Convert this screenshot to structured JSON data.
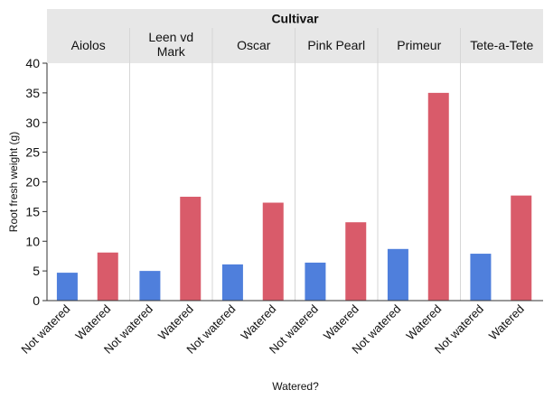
{
  "chart_data": {
    "type": "bar",
    "title": "",
    "facet_label": "Cultivar",
    "xlabel": "Watered?",
    "ylabel": "Root fresh weight (g)",
    "ylim": [
      0,
      40
    ],
    "yticks": [
      0,
      5,
      10,
      15,
      20,
      25,
      30,
      35,
      40
    ],
    "grid": false,
    "legend": "none",
    "categories": [
      "Not watered",
      "Watered"
    ],
    "colors": {
      "Not watered": "#4f7fdc",
      "Watered": "#d95b6a",
      "header_bg": "#e7e7e7",
      "separator": "#d6d6d6",
      "axis": "#333333",
      "text": "#111111"
    },
    "panels": [
      {
        "cultivar": "Aiolos",
        "values": [
          4.7,
          8.1
        ]
      },
      {
        "cultivar": "Leen vd Mark",
        "values": [
          5.0,
          17.5
        ]
      },
      {
        "cultivar": "Oscar",
        "values": [
          6.1,
          16.5
        ]
      },
      {
        "cultivar": "Pink Pearl",
        "values": [
          6.4,
          13.2
        ]
      },
      {
        "cultivar": "Primeur",
        "values": [
          8.7,
          35.0
        ]
      },
      {
        "cultivar": "Tete-a-Tete",
        "values": [
          7.9,
          17.7
        ]
      }
    ]
  }
}
